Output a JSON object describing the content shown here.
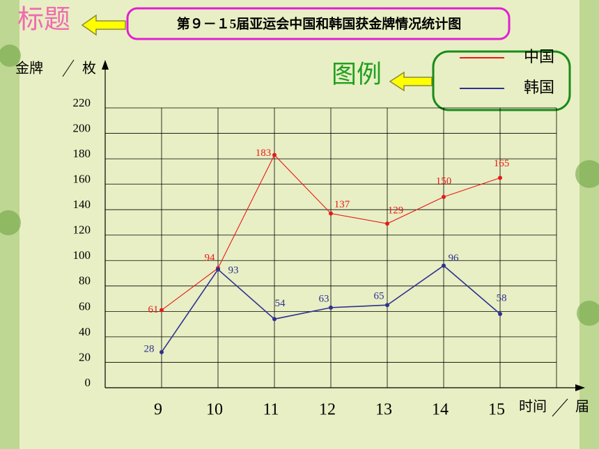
{
  "annotations": {
    "title_tag": "标题",
    "legend_tag": "图例"
  },
  "chart_data": {
    "type": "line",
    "title": "第９－１5届亚运会中国和韩国获金牌情况统计图",
    "ylabel": "金牌",
    "yunit": "枚",
    "xlabel": "时间",
    "xunit": "届",
    "x": [
      9,
      10,
      11,
      12,
      13,
      14,
      15
    ],
    "xlim": [
      8,
      16
    ],
    "xticks": [
      9,
      10,
      11,
      12,
      13,
      14,
      15
    ],
    "ylim": [
      0,
      220
    ],
    "yticks": [
      0,
      20,
      40,
      60,
      80,
      100,
      120,
      140,
      160,
      180,
      200,
      220
    ],
    "grid": true,
    "legend": "upper right",
    "series": [
      {
        "name": "中国",
        "color": "#e8191b",
        "values": [
          61,
          94,
          183,
          137,
          129,
          150,
          165
        ]
      },
      {
        "name": "韩国",
        "color": "#2e3192",
        "values": [
          28,
          93,
          54,
          63,
          65,
          96,
          58
        ]
      }
    ]
  }
}
